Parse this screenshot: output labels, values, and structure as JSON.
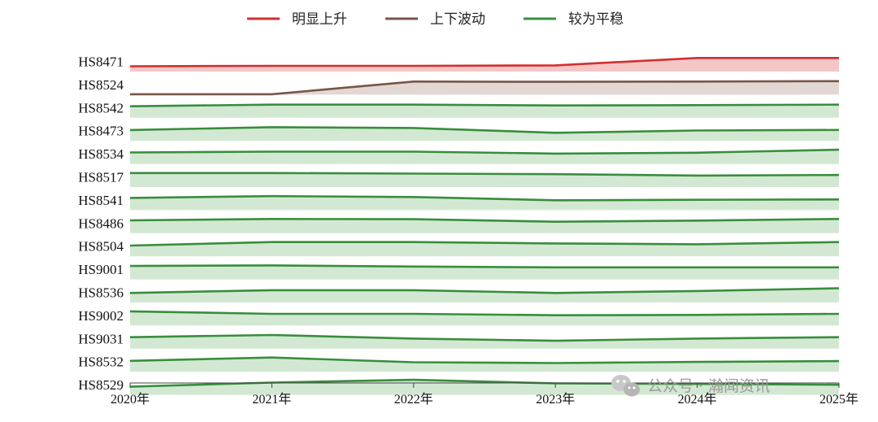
{
  "legend": [
    {
      "label": "明显上升",
      "color": "#d32f2f"
    },
    {
      "label": "上下波动",
      "color": "#795548"
    },
    {
      "label": "较为平稳",
      "color": "#388e3c"
    }
  ],
  "watermark": {
    "text": "公众号 · 瀚闻资讯",
    "icon": "wechat-icon"
  },
  "chart_data": {
    "type": "area",
    "x": [
      "2020年",
      "2021年",
      "2022年",
      "2023年",
      "2024年",
      "2025年"
    ],
    "xlabel": "",
    "ylabel": "",
    "grid": false,
    "legend_position": "top",
    "series": [
      {
        "name": "HS8471",
        "category": "明显上升",
        "values": [
          0.35,
          0.38,
          0.38,
          0.42,
          0.95,
          0.95
        ]
      },
      {
        "name": "HS8524",
        "category": "上下波动",
        "values": [
          0.0,
          0.0,
          0.92,
          0.9,
          0.92,
          0.95
        ]
      },
      {
        "name": "HS8542",
        "category": "较为平稳",
        "values": [
          0.8,
          0.92,
          0.92,
          0.86,
          0.88,
          0.92
        ]
      },
      {
        "name": "HS8473",
        "category": "较为平稳",
        "values": [
          0.75,
          0.96,
          0.9,
          0.55,
          0.72,
          0.76
        ]
      },
      {
        "name": "HS8534",
        "category": "较为平稳",
        "values": [
          0.8,
          0.86,
          0.86,
          0.72,
          0.78,
          1.0
        ]
      },
      {
        "name": "HS8517",
        "category": "较为平稳",
        "values": [
          0.98,
          0.98,
          0.94,
          0.9,
          0.8,
          0.84
        ]
      },
      {
        "name": "HS8541",
        "category": "较为平稳",
        "values": [
          0.85,
          0.98,
          0.92,
          0.68,
          0.72,
          0.74
        ]
      },
      {
        "name": "HS8486",
        "category": "较为平稳",
        "values": [
          0.9,
          1.0,
          0.98,
          0.8,
          0.88,
          1.0
        ]
      },
      {
        "name": "HS8504",
        "category": "较为平稳",
        "values": [
          0.75,
          1.0,
          1.0,
          0.9,
          0.84,
          1.0
        ]
      },
      {
        "name": "HS9001",
        "category": "较为平稳",
        "values": [
          0.94,
          0.98,
          0.9,
          0.84,
          0.84,
          0.84
        ]
      },
      {
        "name": "HS8536",
        "category": "较为平稳",
        "values": [
          0.66,
          0.86,
          0.86,
          0.66,
          0.8,
          1.0
        ]
      },
      {
        "name": "HS9002",
        "category": "较为平稳",
        "values": [
          1.0,
          0.82,
          0.82,
          0.72,
          0.74,
          0.82
        ]
      },
      {
        "name": "HS9031",
        "category": "较为平稳",
        "values": [
          0.8,
          0.96,
          0.7,
          0.54,
          0.7,
          0.8
        ]
      },
      {
        "name": "HS8532",
        "category": "较为平稳",
        "values": [
          0.76,
          1.0,
          0.66,
          0.6,
          0.68,
          0.74
        ]
      },
      {
        "name": "HS8529",
        "category": "较为平稳",
        "values": [
          0.56,
          0.86,
          1.06,
          0.8,
          0.76,
          0.7
        ]
      }
    ]
  }
}
